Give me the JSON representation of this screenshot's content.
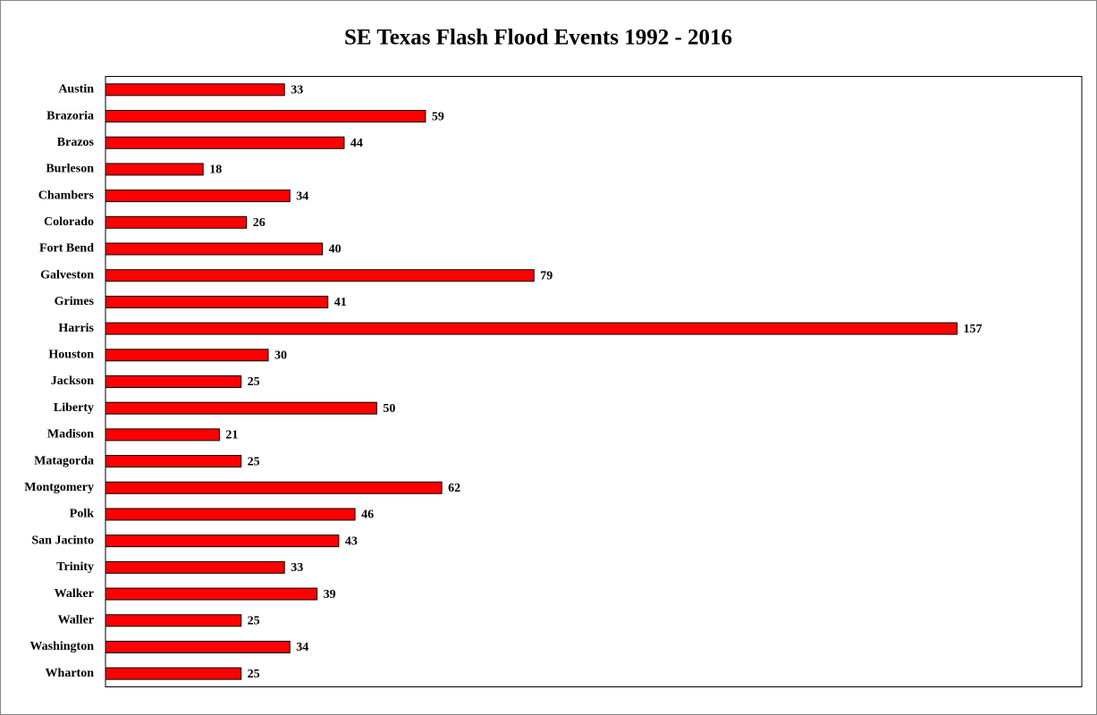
{
  "chart_data": {
    "type": "bar",
    "orientation": "horizontal",
    "title": "SE Texas Flash Flood Events 1992 - 2016",
    "categories": [
      "Austin",
      "Brazoria",
      "Brazos",
      "Burleson",
      "Chambers",
      "Colorado",
      "Fort Bend",
      "Galveston",
      "Grimes",
      "Harris",
      "Houston",
      "Jackson",
      "Liberty",
      "Madison",
      "Matagorda",
      "Montgomery",
      "Polk",
      "San Jacinto",
      "Trinity",
      "Walker",
      "Waller",
      "Washington",
      "Wharton"
    ],
    "values": [
      33,
      59,
      44,
      18,
      34,
      26,
      40,
      79,
      41,
      157,
      30,
      25,
      50,
      21,
      25,
      62,
      46,
      43,
      33,
      39,
      25,
      34,
      25
    ],
    "color": "#ff0000",
    "xlim": [
      0,
      180
    ]
  }
}
